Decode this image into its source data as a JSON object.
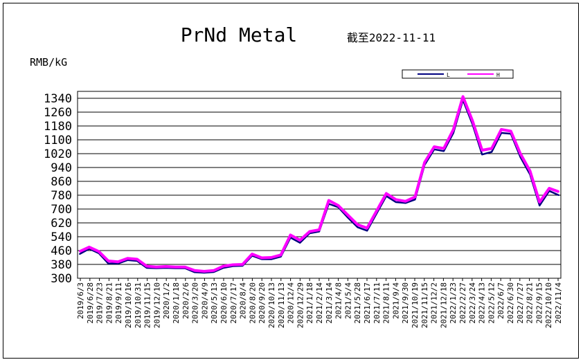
{
  "chart_data": {
    "type": "line",
    "title": "PrNd Metal",
    "subtitle": "截至2022-11-11",
    "ylabel": "RMB/kG",
    "xlabel": "",
    "ylim": [
      300,
      1380
    ],
    "yticks": [
      300,
      380,
      460,
      540,
      620,
      700,
      780,
      860,
      940,
      1020,
      1100,
      1180,
      1260,
      1340
    ],
    "grid": true,
    "legend_position": "top-right",
    "series": [
      {
        "name": "L",
        "color": "#000080"
      },
      {
        "name": "H",
        "color": "#ff00ff"
      }
    ],
    "x": [
      "2019/6/3",
      "2019/6/28",
      "2019/7/23",
      "2019/8/21",
      "2019/9/11",
      "2019/10/16",
      "2019/10/31",
      "2019/11/15",
      "2019/12/10",
      "2020/1/2",
      "2020/1/18",
      "2020/2/6",
      "2020/3/20",
      "2020/4/9",
      "2020/5/13",
      "2020/6/10",
      "2020/7/17",
      "2020/8/4",
      "2020/8/20",
      "2020/9/20",
      "2020/10/13",
      "2020/11/13",
      "2020/12/4",
      "2020/12/29",
      "2021/1/18",
      "2021/2/14",
      "2021/3/14",
      "2021/4/8",
      "2021/5/4",
      "2021/5/28",
      "2021/6/17",
      "2021/7/11",
      "2021/8/11",
      "2021/9/4",
      "2021/9/30",
      "2021/10/19",
      "2021/11/15",
      "2021/12/2",
      "2021/12/18",
      "2022/1/23",
      "2022/2/27",
      "2022/3/24",
      "2022/4/13",
      "2022/5/12",
      "2022/6/7",
      "2022/6/30",
      "2022/7/27",
      "2022/8/21",
      "2022/9/15",
      "2022/10/10",
      "2022/11/4"
    ],
    "x_ticks": [
      "2019/6/3",
      "2019/6/28",
      "2019/7/23",
      "2019/8/21",
      "2019/9/11",
      "2019/10/16",
      "2019/10/31",
      "2019/11/15",
      "2019/12/10",
      "2020/1/2",
      "2020/1/18",
      "2020/2/6",
      "2020/3/20",
      "2020/4/9",
      "2020/5/13",
      "2020/6/10",
      "2020/7/17",
      "2020/8/4",
      "2020/8/20",
      "2020/9/20",
      "2020/10/13",
      "2020/11/13",
      "2020/12/4",
      "2020/12/29",
      "2021/1/18",
      "2021/2/14",
      "2021/3/14",
      "2021/4/8",
      "2021/5/4",
      "2021/5/28",
      "2021/6/17",
      "2021/7/11",
      "2021/8/11",
      "2021/9/4",
      "2021/9/30",
      "2021/10/19",
      "2021/11/15",
      "2021/12/2",
      "2021/12/18",
      "2022/1/23",
      "2022/2/27",
      "2022/3/24",
      "2022/4/13",
      "2022/5/12",
      "2022/6/7",
      "2022/6/30",
      "2022/7/27",
      "2022/8/21",
      "2022/9/15",
      "2022/10/10",
      "2022/11/4"
    ],
    "H": [
      455,
      480,
      455,
      400,
      395,
      415,
      410,
      370,
      365,
      368,
      365,
      365,
      345,
      340,
      345,
      370,
      378,
      380,
      440,
      418,
      420,
      435,
      550,
      520,
      570,
      580,
      750,
      720,
      665,
      610,
      590,
      690,
      790,
      755,
      745,
      770,
      970,
      1060,
      1050,
      1160,
      1350,
      1210,
      1040,
      1050,
      1160,
      1150,
      1020,
      920,
      740,
      820,
      800
    ],
    "L": [
      440,
      470,
      445,
      385,
      385,
      405,
      400,
      360,
      358,
      360,
      358,
      358,
      335,
      332,
      336,
      360,
      370,
      372,
      430,
      410,
      410,
      425,
      535,
      505,
      560,
      570,
      730,
      710,
      650,
      595,
      575,
      675,
      775,
      740,
      735,
      755,
      955,
      1045,
      1035,
      1140,
      1330,
      1190,
      1015,
      1030,
      1140,
      1135,
      1000,
      900,
      720,
      805,
      780
    ]
  },
  "legend": {
    "low_label": "L",
    "high_label": "H"
  }
}
